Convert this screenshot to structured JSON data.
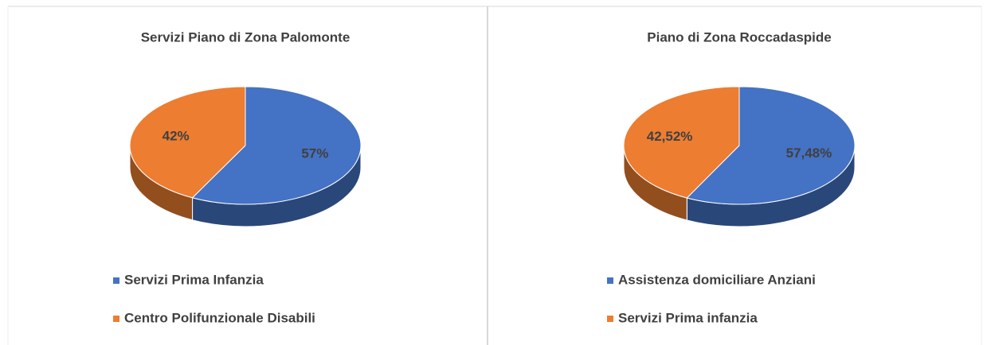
{
  "chart_data": [
    {
      "type": "pie",
      "title": "Servizi Piano di Zona Palomonte",
      "categories": [
        "Servizi Prima Infanzia",
        "Centro Polifunzionale Disabili"
      ],
      "values": [
        57,
        42
      ],
      "value_labels": [
        "57%",
        "42%"
      ],
      "colors": [
        "#4472c4",
        "#ed7d31"
      ]
    },
    {
      "type": "pie",
      "title": "Piano di Zona Roccadaspide",
      "categories": [
        "Assistenza domiciliare Anziani",
        "Servizi Prima infanzia"
      ],
      "values": [
        57.48,
        42.52
      ],
      "value_labels": [
        "57,48%",
        "42,52%"
      ],
      "colors": [
        "#4472c4",
        "#ed7d31"
      ]
    }
  ]
}
